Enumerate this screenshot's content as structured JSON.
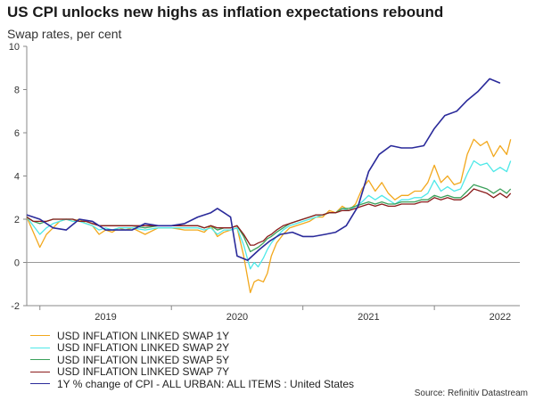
{
  "title": "US CPI unlocks new highs as inflation expectations rebound",
  "subtitle": "Swap rates, per cent",
  "source": "Source: Refinitiv Datastream",
  "chart_data": {
    "type": "line",
    "title": "US CPI unlocks new highs as inflation expectations rebound",
    "subtitle": "Swap rates, per cent",
    "xlabel": "",
    "ylabel": "",
    "ylim": [
      -2,
      10
    ],
    "yticks": [
      -2,
      0,
      2,
      4,
      6,
      8,
      10
    ],
    "xlim": [
      2018.4,
      2022.15
    ],
    "xtick_labels": [
      {
        "label": "2019",
        "x": 2019.0
      },
      {
        "label": "2020",
        "x": 2020.0
      },
      {
        "label": "2021",
        "x": 2021.0
      },
      {
        "label": "2022",
        "x": 2022.0
      }
    ],
    "x_boundaries": [
      2018.5,
      2019.5,
      2020.5,
      2021.5
    ],
    "grid": false,
    "legend_position": "bottom-left",
    "series": [
      {
        "name": "USD INFLATION LINKED SWAP 1Y",
        "color": "#f2a81d",
        "x": [
          2018.4,
          2018.45,
          2018.5,
          2018.55,
          2018.6,
          2018.65,
          2018.7,
          2018.75,
          2018.8,
          2018.85,
          2018.9,
          2018.95,
          2019.0,
          2019.05,
          2019.1,
          2019.15,
          2019.2,
          2019.3,
          2019.4,
          2019.5,
          2019.6,
          2019.7,
          2019.75,
          2019.8,
          2019.85,
          2019.9,
          2019.95,
          2020.0,
          2020.05,
          2020.1,
          2020.13,
          2020.16,
          2020.2,
          2020.23,
          2020.26,
          2020.3,
          2020.35,
          2020.4,
          2020.45,
          2020.5,
          2020.55,
          2020.6,
          2020.65,
          2020.7,
          2020.75,
          2020.8,
          2020.85,
          2020.9,
          2020.95,
          2021.0,
          2021.05,
          2021.1,
          2021.15,
          2021.2,
          2021.25,
          2021.3,
          2021.35,
          2021.4,
          2021.45,
          2021.5,
          2021.55,
          2021.6,
          2021.65,
          2021.7,
          2021.75,
          2021.8,
          2021.85,
          2021.9,
          2021.95,
          2022.0,
          2022.05,
          2022.08
        ],
        "values": [
          2.1,
          1.4,
          0.7,
          1.3,
          1.6,
          1.9,
          2.0,
          1.9,
          2.0,
          1.8,
          1.7,
          1.3,
          1.5,
          1.4,
          1.6,
          1.5,
          1.6,
          1.3,
          1.6,
          1.6,
          1.5,
          1.5,
          1.4,
          1.7,
          1.2,
          1.4,
          1.5,
          1.6,
          0.3,
          -1.4,
          -0.9,
          -0.8,
          -0.9,
          -0.5,
          0.3,
          0.9,
          1.3,
          1.6,
          1.7,
          1.8,
          1.9,
          2.1,
          2.1,
          2.4,
          2.3,
          2.6,
          2.4,
          2.7,
          3.4,
          3.8,
          3.3,
          3.7,
          3.2,
          2.9,
          3.1,
          3.1,
          3.3,
          3.3,
          3.7,
          4.5,
          3.7,
          4.0,
          3.6,
          3.7,
          5.0,
          5.7,
          5.4,
          5.6,
          4.9,
          5.4,
          5.0,
          5.7
        ]
      },
      {
        "name": "USD INFLATION LINKED SWAP 2Y",
        "color": "#4ee8e8",
        "x": [
          2018.4,
          2018.45,
          2018.5,
          2018.55,
          2018.6,
          2018.65,
          2018.7,
          2018.75,
          2018.8,
          2018.85,
          2018.9,
          2018.95,
          2019.0,
          2019.05,
          2019.1,
          2019.15,
          2019.2,
          2019.3,
          2019.4,
          2019.5,
          2019.6,
          2019.7,
          2019.75,
          2019.8,
          2019.85,
          2019.9,
          2019.95,
          2020.0,
          2020.05,
          2020.1,
          2020.13,
          2020.16,
          2020.2,
          2020.23,
          2020.26,
          2020.3,
          2020.35,
          2020.4,
          2020.45,
          2020.5,
          2020.55,
          2020.6,
          2020.65,
          2020.7,
          2020.75,
          2020.8,
          2020.85,
          2020.9,
          2020.95,
          2021.0,
          2021.05,
          2021.1,
          2021.15,
          2021.2,
          2021.25,
          2021.3,
          2021.35,
          2021.4,
          2021.45,
          2021.5,
          2021.55,
          2021.6,
          2021.65,
          2021.7,
          2021.75,
          2021.8,
          2021.85,
          2021.9,
          2021.95,
          2022.0,
          2022.05,
          2022.08
        ],
        "values": [
          2.1,
          1.7,
          1.3,
          1.6,
          1.8,
          1.9,
          2.0,
          1.9,
          1.9,
          1.8,
          1.7,
          1.5,
          1.6,
          1.5,
          1.6,
          1.6,
          1.6,
          1.5,
          1.6,
          1.6,
          1.6,
          1.6,
          1.5,
          1.6,
          1.3,
          1.5,
          1.5,
          1.6,
          0.8,
          -0.3,
          0.0,
          -0.2,
          0.2,
          0.6,
          0.9,
          1.2,
          1.5,
          1.7,
          1.8,
          1.9,
          2.0,
          2.1,
          2.2,
          2.3,
          2.3,
          2.5,
          2.4,
          2.6,
          2.8,
          3.1,
          2.9,
          3.1,
          2.9,
          2.7,
          2.9,
          2.9,
          3.0,
          3.0,
          3.2,
          3.8,
          3.3,
          3.5,
          3.3,
          3.4,
          4.1,
          4.7,
          4.5,
          4.6,
          4.2,
          4.4,
          4.2,
          4.7
        ]
      },
      {
        "name": "USD INFLATION LINKED SWAP 5Y",
        "color": "#3aa05a",
        "x": [
          2018.4,
          2018.45,
          2018.5,
          2018.55,
          2018.6,
          2018.65,
          2018.7,
          2018.75,
          2018.8,
          2018.85,
          2018.9,
          2018.95,
          2019.0,
          2019.05,
          2019.1,
          2019.15,
          2019.2,
          2019.3,
          2019.4,
          2019.5,
          2019.6,
          2019.7,
          2019.75,
          2019.8,
          2019.85,
          2019.9,
          2019.95,
          2020.0,
          2020.05,
          2020.1,
          2020.13,
          2020.16,
          2020.2,
          2020.23,
          2020.26,
          2020.3,
          2020.35,
          2020.4,
          2020.45,
          2020.5,
          2020.55,
          2020.6,
          2020.65,
          2020.7,
          2020.75,
          2020.8,
          2020.85,
          2020.9,
          2020.95,
          2021.0,
          2021.05,
          2021.1,
          2021.15,
          2021.2,
          2021.25,
          2021.3,
          2021.35,
          2021.4,
          2021.45,
          2021.5,
          2021.55,
          2021.6,
          2021.65,
          2021.7,
          2021.75,
          2021.8,
          2021.85,
          2021.9,
          2021.95,
          2022.0,
          2022.05,
          2022.08
        ],
        "values": [
          2.1,
          1.9,
          1.8,
          1.9,
          2.0,
          2.0,
          2.0,
          2.0,
          1.9,
          1.9,
          1.8,
          1.7,
          1.7,
          1.7,
          1.7,
          1.7,
          1.7,
          1.6,
          1.7,
          1.7,
          1.7,
          1.7,
          1.6,
          1.7,
          1.5,
          1.6,
          1.6,
          1.7,
          1.2,
          0.5,
          0.6,
          0.7,
          0.9,
          1.1,
          1.2,
          1.4,
          1.6,
          1.8,
          1.9,
          2.0,
          2.1,
          2.2,
          2.2,
          2.3,
          2.3,
          2.5,
          2.5,
          2.6,
          2.7,
          2.8,
          2.7,
          2.8,
          2.7,
          2.7,
          2.8,
          2.8,
          2.8,
          2.9,
          2.9,
          3.1,
          3.0,
          3.1,
          3.0,
          3.0,
          3.3,
          3.6,
          3.5,
          3.4,
          3.2,
          3.4,
          3.2,
          3.4
        ]
      },
      {
        "name": "USD INFLATION LINKED SWAP 7Y",
        "color": "#8b1c1c",
        "x": [
          2018.4,
          2018.45,
          2018.5,
          2018.55,
          2018.6,
          2018.65,
          2018.7,
          2018.75,
          2018.8,
          2018.85,
          2018.9,
          2018.95,
          2019.0,
          2019.05,
          2019.1,
          2019.15,
          2019.2,
          2019.3,
          2019.4,
          2019.5,
          2019.6,
          2019.7,
          2019.75,
          2019.8,
          2019.85,
          2019.9,
          2019.95,
          2020.0,
          2020.05,
          2020.1,
          2020.13,
          2020.16,
          2020.2,
          2020.23,
          2020.26,
          2020.3,
          2020.35,
          2020.4,
          2020.45,
          2020.5,
          2020.55,
          2020.6,
          2020.65,
          2020.7,
          2020.75,
          2020.8,
          2020.85,
          2020.9,
          2020.95,
          2021.0,
          2021.05,
          2021.1,
          2021.15,
          2021.2,
          2021.25,
          2021.3,
          2021.35,
          2021.4,
          2021.45,
          2021.5,
          2021.55,
          2021.6,
          2021.65,
          2021.7,
          2021.75,
          2021.8,
          2021.85,
          2021.9,
          2021.95,
          2022.0,
          2022.05,
          2022.08
        ],
        "values": [
          2.1,
          1.9,
          1.9,
          1.9,
          2.0,
          2.0,
          2.0,
          2.0,
          1.9,
          1.9,
          1.8,
          1.7,
          1.7,
          1.7,
          1.7,
          1.7,
          1.7,
          1.7,
          1.7,
          1.7,
          1.7,
          1.7,
          1.6,
          1.7,
          1.6,
          1.6,
          1.6,
          1.7,
          1.3,
          0.8,
          0.8,
          0.9,
          1.0,
          1.2,
          1.3,
          1.5,
          1.7,
          1.8,
          1.9,
          2.0,
          2.1,
          2.2,
          2.2,
          2.3,
          2.3,
          2.4,
          2.4,
          2.5,
          2.6,
          2.7,
          2.6,
          2.7,
          2.6,
          2.6,
          2.7,
          2.7,
          2.7,
          2.8,
          2.8,
          3.0,
          2.9,
          3.0,
          2.9,
          2.9,
          3.1,
          3.4,
          3.3,
          3.2,
          3.0,
          3.2,
          3.0,
          3.2
        ]
      },
      {
        "name": "1Y % change of CPI - ALL URBAN: ALL ITEMS : United States",
        "color": "#2a2a9a",
        "x": [
          2018.4,
          2018.5,
          2018.6,
          2018.7,
          2018.8,
          2018.9,
          2019.0,
          2019.1,
          2019.2,
          2019.3,
          2019.4,
          2019.5,
          2019.6,
          2019.7,
          2019.8,
          2019.85,
          2019.9,
          2019.95,
          2020.0,
          2020.08,
          2020.17,
          2020.25,
          2020.33,
          2020.42,
          2020.5,
          2020.58,
          2020.67,
          2020.75,
          2020.83,
          2020.92,
          2021.0,
          2021.08,
          2021.17,
          2021.25,
          2021.33,
          2021.42,
          2021.5,
          2021.58,
          2021.67,
          2021.75,
          2021.83,
          2021.92,
          2022.0
        ],
        "values": [
          2.2,
          2.0,
          1.6,
          1.5,
          2.0,
          1.9,
          1.5,
          1.5,
          1.5,
          1.8,
          1.7,
          1.7,
          1.8,
          2.1,
          2.3,
          2.5,
          2.3,
          2.1,
          0.3,
          0.1,
          0.6,
          1.0,
          1.3,
          1.4,
          1.2,
          1.2,
          1.3,
          1.4,
          1.7,
          2.6,
          4.2,
          5.0,
          5.4,
          5.3,
          5.3,
          5.4,
          6.2,
          6.8,
          7.0,
          7.5,
          7.9,
          8.5,
          8.3
        ]
      }
    ]
  }
}
